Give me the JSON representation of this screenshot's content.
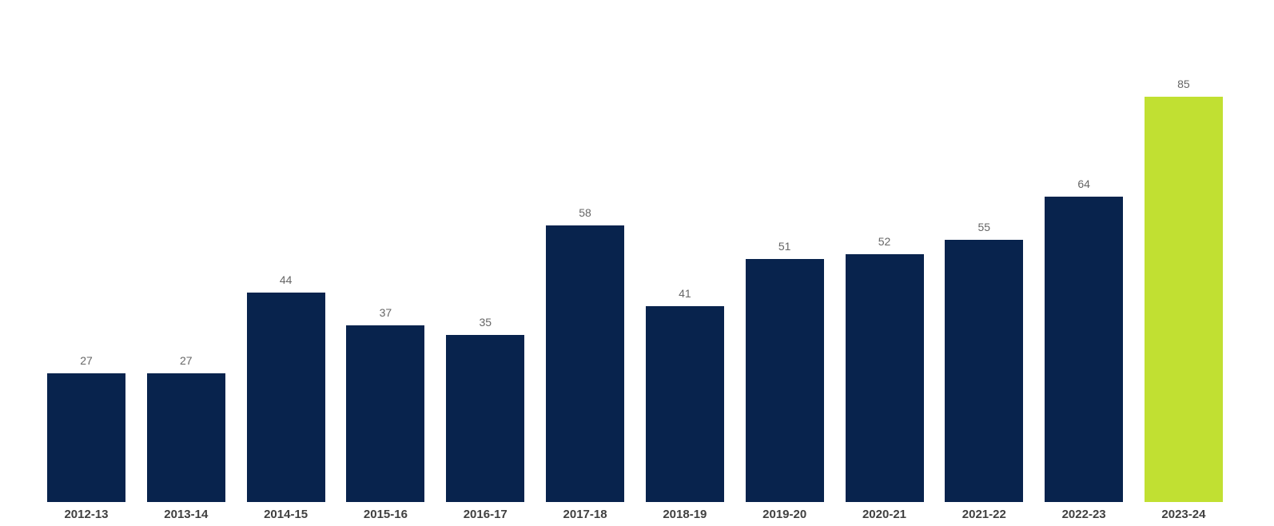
{
  "chart_data": {
    "type": "bar",
    "title": "",
    "xlabel": "",
    "ylabel": "",
    "categories": [
      "2012-13",
      "2013-14",
      "2014-15",
      "2015-16",
      "2016-17",
      "2017-18",
      "2018-19",
      "2019-20",
      "2020-21",
      "2021-22",
      "2022-23",
      "2023-24"
    ],
    "values": [
      27,
      27,
      44,
      37,
      35,
      58,
      41,
      51,
      52,
      55,
      64,
      85
    ],
    "ylim": [
      0,
      90
    ],
    "grid": false,
    "legend": false,
    "highlight_index": 11,
    "colors": {
      "bar": "#08234d",
      "highlight": "#c1e032",
      "value_label": "#666666",
      "category_label": "#404040",
      "background": "#ffffff"
    }
  }
}
